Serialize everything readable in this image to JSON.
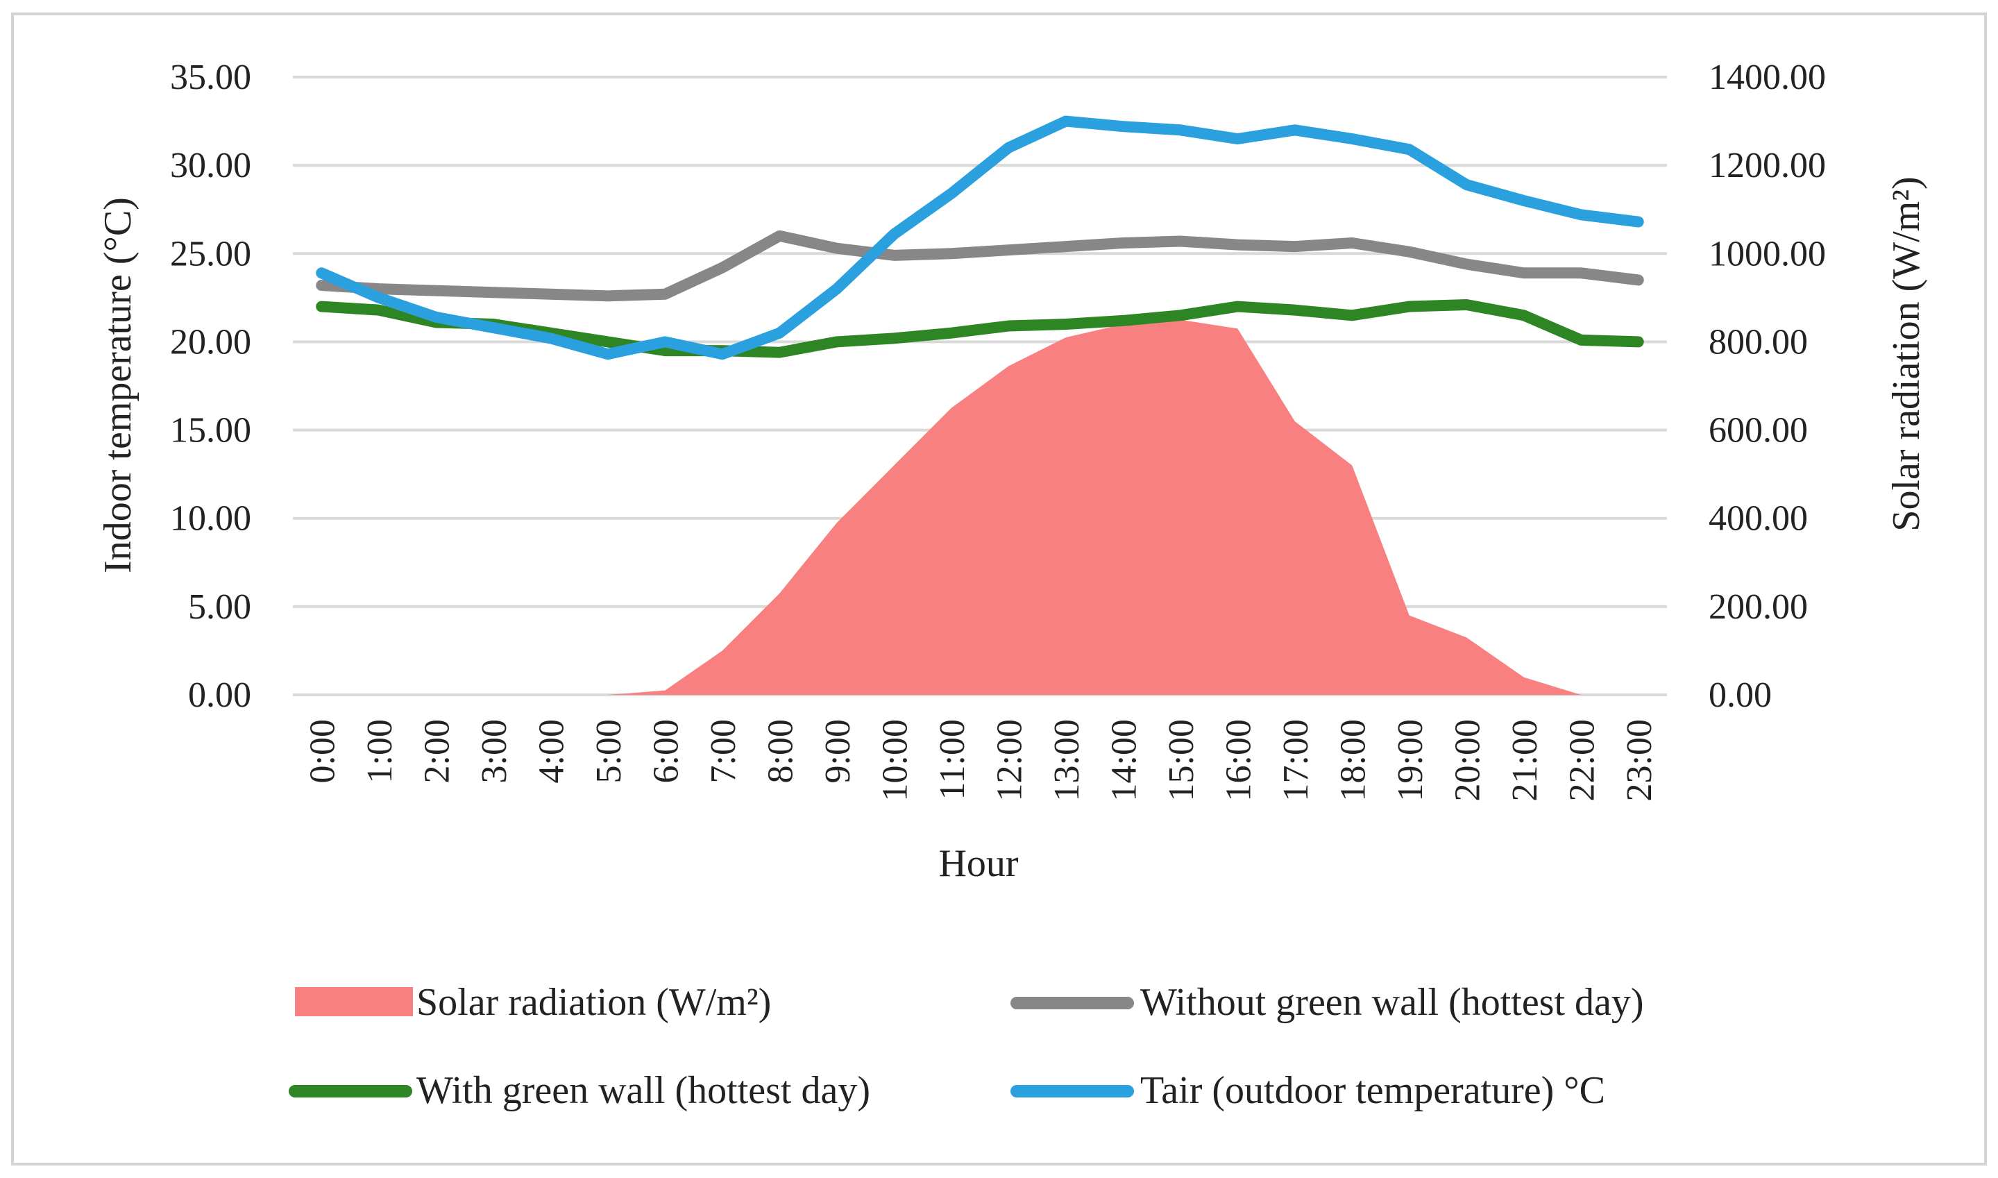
{
  "chart_data": {
    "type": "line",
    "title": "",
    "xlabel": "Hour",
    "ylabel": "Indoor temperature (°C)",
    "y2label": "Solar radiation (W/m²)",
    "categories": [
      "0:00",
      "1:00",
      "2:00",
      "3:00",
      "4:00",
      "5:00",
      "6:00",
      "7:00",
      "8:00",
      "9:00",
      "10:00",
      "11:00",
      "12:00",
      "13:00",
      "14:00",
      "15:00",
      "16:00",
      "17:00",
      "18:00",
      "19:00",
      "20:00",
      "21:00",
      "22:00",
      "23:00"
    ],
    "ylim": [
      0,
      35
    ],
    "y_ticks": [
      "0.00",
      "5.00",
      "10.00",
      "15.00",
      "20.00",
      "25.00",
      "30.00",
      "35.00"
    ],
    "y2lim": [
      0,
      1400
    ],
    "y2_ticks": [
      "0.00",
      "200.00",
      "400.00",
      "600.00",
      "800.00",
      "1000.00",
      "1200.00",
      "1400.00"
    ],
    "grid": true,
    "legend_position": "bottom",
    "series": [
      {
        "name": "Solar radiation (W/m²)",
        "type": "area",
        "axis": "right",
        "color": "#f88080",
        "values": [
          0,
          0,
          0,
          0,
          0,
          0,
          10,
          100,
          230,
          390,
          520,
          650,
          745,
          810,
          840,
          850,
          830,
          620,
          520,
          180,
          130,
          40,
          0,
          0
        ]
      },
      {
        "name": "Without green wall (hottest day)",
        "type": "line",
        "axis": "left",
        "color": "#878787",
        "values": [
          23.2,
          23.0,
          22.9,
          22.8,
          22.7,
          22.6,
          22.7,
          24.2,
          26.0,
          25.3,
          24.9,
          25.0,
          25.2,
          25.4,
          25.6,
          25.7,
          25.5,
          25.4,
          25.6,
          25.1,
          24.4,
          23.9,
          23.9,
          23.5
        ]
      },
      {
        "name": "With green wall (hottest day)",
        "type": "line",
        "axis": "left",
        "color": "#2e8524",
        "values": [
          22.0,
          21.8,
          21.1,
          21.0,
          20.5,
          20.0,
          19.5,
          19.5,
          19.4,
          20.0,
          20.2,
          20.5,
          20.9,
          21.0,
          21.2,
          21.5,
          22.0,
          21.8,
          21.5,
          22.0,
          22.1,
          21.5,
          20.1,
          20.0
        ]
      },
      {
        "name": "Tair (outdoor temperature) °C",
        "type": "line",
        "axis": "left",
        "color": "#2aa0df",
        "values": [
          23.9,
          22.5,
          21.4,
          20.8,
          20.2,
          19.3,
          20.0,
          19.3,
          20.5,
          23.0,
          26.1,
          28.4,
          31.0,
          32.5,
          32.2,
          32.0,
          31.5,
          32.0,
          31.5,
          30.9,
          28.9,
          28.0,
          27.2,
          26.8
        ]
      }
    ]
  }
}
